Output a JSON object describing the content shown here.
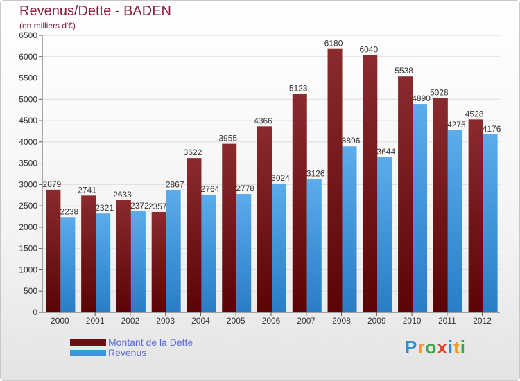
{
  "title": "Revenus/Dette - BADEN",
  "subtitle": "(en milliers d'€)",
  "colors": {
    "debt": "#6b0f12",
    "revenue": "#3b95dc",
    "title": "#8b1a3a"
  },
  "legend": {
    "debt_label": "Montant de la Dette",
    "revenue_label": "Revenus"
  },
  "logo": {
    "text": "Proxiti",
    "letters": [
      "P",
      "r",
      "o",
      "x",
      "i",
      "t",
      "i"
    ]
  },
  "chart_data": {
    "type": "bar",
    "title": "Revenus/Dette - BADEN",
    "ylabel": "(en milliers d'€)",
    "xlabel": "",
    "categories": [
      "2000",
      "2001",
      "2002",
      "2003",
      "2004",
      "2005",
      "2006",
      "2007",
      "2008",
      "2009",
      "2010",
      "2011",
      "2012"
    ],
    "series": [
      {
        "name": "Montant de la Dette",
        "values": [
          2879,
          2741,
          2633,
          2357,
          3622,
          3955,
          4366,
          5123,
          6180,
          6040,
          5538,
          5028,
          4528
        ]
      },
      {
        "name": "Revenus",
        "values": [
          2238,
          2321,
          2372,
          2867,
          2764,
          2778,
          3024,
          3126,
          3896,
          3644,
          4890,
          4275,
          4176
        ]
      }
    ],
    "ylim": [
      0,
      6500
    ],
    "yticks": [
      0,
      500,
      1000,
      1500,
      2000,
      2500,
      3000,
      3500,
      4000,
      4500,
      5000,
      5500,
      6000,
      6500
    ],
    "grid": true,
    "legend_position": "bottom-left"
  }
}
